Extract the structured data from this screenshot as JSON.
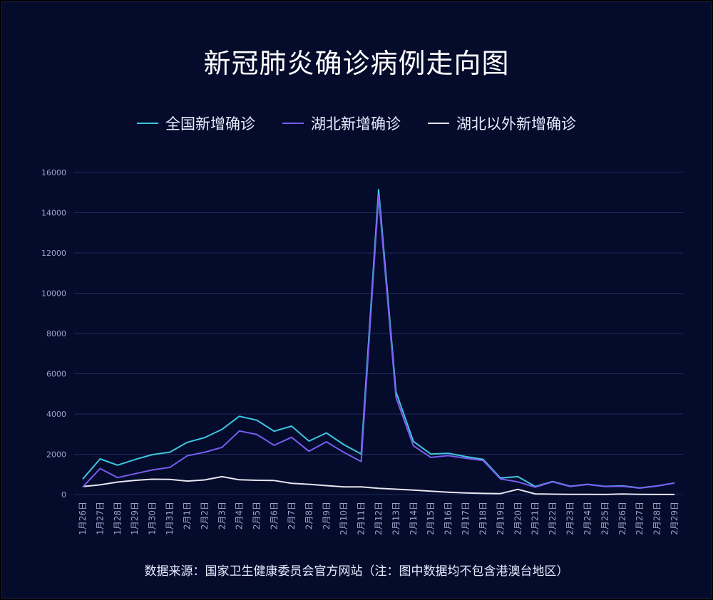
{
  "chart_data": {
    "type": "line",
    "title": "新冠肺炎确诊病例走向图",
    "xlabel": "",
    "ylabel": "",
    "ylim": [
      0,
      16000
    ],
    "yticks": [
      0,
      2000,
      4000,
      6000,
      8000,
      10000,
      12000,
      14000,
      16000
    ],
    "grid": true,
    "legend_position": "top-center",
    "categories": [
      "1月26日",
      "1月27日",
      "1月28日",
      "1月29日",
      "1月30日",
      "1月31日",
      "2月1日",
      "2月2日",
      "2月3日",
      "2月4日",
      "2月5日",
      "2月6日",
      "2月7日",
      "2月8日",
      "2月9日",
      "2月10日",
      "2月11日",
      "2月12日",
      "2月13日",
      "2月14日",
      "2月15日",
      "2月16日",
      "2月17日",
      "2月18日",
      "2月19日",
      "2月20日",
      "2月21日",
      "2月22日",
      "2月23日",
      "2月24日",
      "2月25日",
      "2月26日",
      "2月27日",
      "2月28日",
      "2月29日"
    ],
    "series": [
      {
        "name": "全国新增确诊",
        "color": "#3ec6e0",
        "values": [
          769,
          1771,
          1459,
          1737,
          1982,
          2102,
          2590,
          2829,
          3235,
          3887,
          3694,
          3143,
          3399,
          2656,
          3062,
          2478,
          2015,
          15152,
          5090,
          2641,
          2009,
          2048,
          1886,
          1749,
          820,
          889,
          397,
          648,
          409,
          508,
          406,
          433,
          327,
          427,
          573
        ]
      },
      {
        "name": "湖北新增确诊",
        "color": "#7a5cf0",
        "values": [
          371,
          1291,
          840,
          1032,
          1220,
          1347,
          1921,
          2103,
          2345,
          3156,
          2987,
          2447,
          2841,
          2147,
          2618,
          2097,
          1638,
          14840,
          4823,
          2420,
          1843,
          1933,
          1807,
          1693,
          775,
          631,
          366,
          630,
          398,
          499,
          401,
          409,
          318,
          423,
          570
        ]
      },
      {
        "name": "湖北以外新增确诊",
        "color": "#e6e6ee",
        "values": [
          398,
          480,
          619,
          705,
          762,
          755,
          669,
          726,
          890,
          731,
          707,
          696,
          558,
          509,
          444,
          381,
          377,
          312,
          267,
          221,
          166,
          115,
          79,
          56,
          45,
          258,
          31,
          18,
          11,
          9,
          5,
          24,
          9,
          4,
          3
        ]
      }
    ]
  },
  "source_text": "数据来源：国家卫生健康委员会官方网站（注：图中数据均不包含港澳台地区）",
  "colors": {
    "background": "#040b2b",
    "grid": "#1e2a5c",
    "tick_text": "#9aa4cc"
  }
}
